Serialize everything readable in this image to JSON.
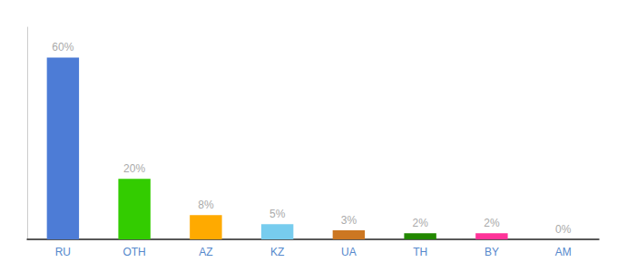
{
  "chart_data": {
    "type": "bar",
    "categories": [
      "RU",
      "OTH",
      "AZ",
      "KZ",
      "UA",
      "TH",
      "BY",
      "AM"
    ],
    "values": [
      60,
      20,
      8,
      5,
      3,
      2,
      2,
      0
    ],
    "value_labels": [
      "60%",
      "20%",
      "8%",
      "5%",
      "3%",
      "2%",
      "2%",
      "0%"
    ],
    "colors": [
      "#4d7cd6",
      "#33cc00",
      "#ffaa00",
      "#77ccee",
      "#cc7722",
      "#228800",
      "#ff3399",
      "#aaaaaa"
    ],
    "ylim": [
      0,
      70
    ],
    "grid": false,
    "data_labels": true,
    "tick_labels": "x"
  }
}
